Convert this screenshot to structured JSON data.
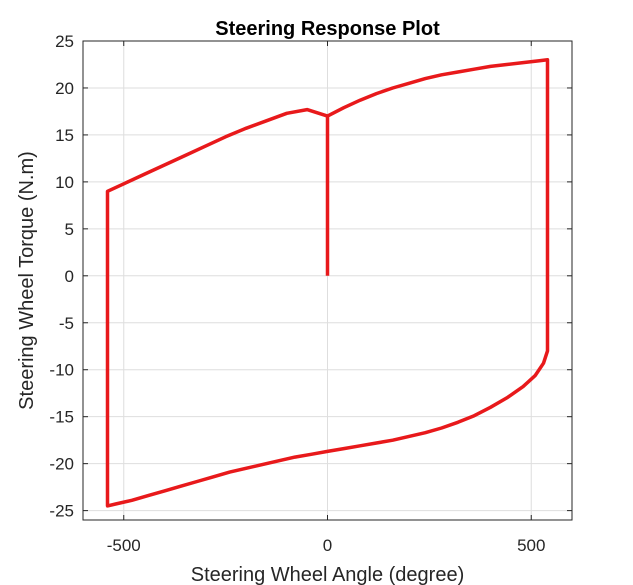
{
  "chart_data": {
    "type": "line",
    "title": "Steering Response Plot",
    "xlabel": "Steering Wheel Angle (degree)",
    "ylabel": "Steering Wheel Torque (N.m)",
    "xlim": [
      -600,
      600
    ],
    "ylim": [
      -26,
      25
    ],
    "xticks": [
      -500,
      0,
      500
    ],
    "xtick_labels": [
      "-500",
      "0",
      "500"
    ],
    "yticks": [
      25,
      20,
      15,
      10,
      5,
      0,
      -5,
      -10,
      -15,
      -20,
      -25
    ],
    "ytick_labels": [
      "25",
      "20",
      "15",
      "10",
      "5",
      "0",
      "-5",
      "-10",
      "-15",
      "-20",
      "-25"
    ],
    "grid": true,
    "legend": null,
    "series": [
      {
        "color": "#e8191b",
        "x": [
          0,
          0,
          40,
          80,
          120,
          160,
          200,
          240,
          280,
          320,
          360,
          400,
          440,
          480,
          520,
          540,
          540,
          530,
          510,
          480,
          440,
          400,
          360,
          320,
          280,
          240,
          200,
          160,
          120,
          80,
          40,
          0,
          -40,
          -80,
          -120,
          -160,
          -200,
          -240,
          -280,
          -320,
          -360,
          -400,
          -440,
          -480,
          -520,
          -540,
          -540,
          -500,
          -450,
          -400,
          -350,
          -300,
          -250,
          -200,
          -150,
          -100,
          -50,
          0
        ],
        "y": [
          0,
          17,
          17.9,
          18.7,
          19.4,
          20.0,
          20.5,
          21.0,
          21.4,
          21.7,
          22.0,
          22.3,
          22.5,
          22.7,
          22.9,
          23,
          -8,
          -9.3,
          -10.6,
          -11.8,
          -13.0,
          -14.0,
          -14.9,
          -15.6,
          -16.2,
          -16.7,
          -17.1,
          -17.5,
          -17.8,
          -18.1,
          -18.4,
          -18.7,
          -19.0,
          -19.3,
          -19.7,
          -20.1,
          -20.5,
          -20.9,
          -21.4,
          -21.9,
          -22.4,
          -22.9,
          -23.4,
          -23.9,
          -24.3,
          -24.5,
          9,
          9.8,
          10.8,
          11.8,
          12.8,
          13.8,
          14.8,
          15.7,
          16.5,
          17.3,
          17.7,
          17
        ]
      }
    ]
  }
}
